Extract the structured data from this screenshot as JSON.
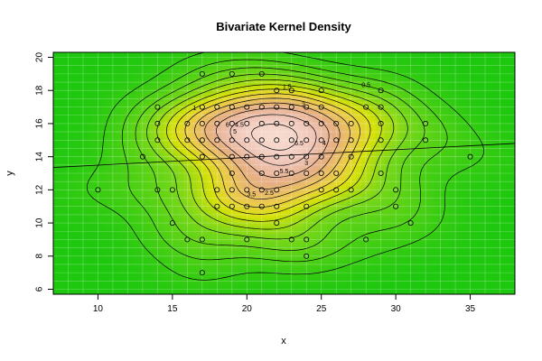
{
  "chart_data": {
    "type": "scatter",
    "title": "Bivariate Kernel Density",
    "xlabel": "x",
    "ylabel": "y",
    "xlim": [
      7,
      38
    ],
    "ylim": [
      5.7,
      20.3
    ],
    "xticks": [
      10,
      15,
      20,
      25,
      30,
      35
    ],
    "yticks": [
      6,
      8,
      10,
      12,
      14,
      16,
      18,
      20
    ],
    "grid": true,
    "regression_line": {
      "x": [
        7,
        38
      ],
      "y": [
        13.35,
        14.8
      ]
    },
    "points": [
      [
        10,
        12
      ],
      [
        13,
        14
      ],
      [
        14,
        12
      ],
      [
        14,
        15
      ],
      [
        14,
        16
      ],
      [
        14,
        17
      ],
      [
        15,
        10
      ],
      [
        15,
        12
      ],
      [
        16,
        9
      ],
      [
        16,
        15
      ],
      [
        16,
        16
      ],
      [
        17,
        7
      ],
      [
        17,
        9
      ],
      [
        17,
        14
      ],
      [
        17,
        15
      ],
      [
        17,
        16
      ],
      [
        17,
        17
      ],
      [
        17,
        19
      ],
      [
        18,
        11
      ],
      [
        18,
        12
      ],
      [
        18,
        15
      ],
      [
        18,
        16
      ],
      [
        18,
        17
      ],
      [
        19,
        11
      ],
      [
        19,
        12
      ],
      [
        19,
        13
      ],
      [
        19,
        14
      ],
      [
        19,
        15
      ],
      [
        19,
        16
      ],
      [
        19,
        17
      ],
      [
        19,
        19
      ],
      [
        20,
        9
      ],
      [
        20,
        11
      ],
      [
        20,
        12
      ],
      [
        20,
        14
      ],
      [
        20,
        15
      ],
      [
        20,
        16
      ],
      [
        20,
        17
      ],
      [
        21,
        11
      ],
      [
        21,
        12
      ],
      [
        21,
        13
      ],
      [
        21,
        14
      ],
      [
        21,
        15
      ],
      [
        21,
        16
      ],
      [
        21,
        17
      ],
      [
        21,
        19
      ],
      [
        22,
        10
      ],
      [
        22,
        11
      ],
      [
        22,
        12
      ],
      [
        22,
        13
      ],
      [
        22,
        14
      ],
      [
        22,
        15
      ],
      [
        22,
        16
      ],
      [
        22,
        17
      ],
      [
        22,
        18
      ],
      [
        23,
        9
      ],
      [
        23,
        13
      ],
      [
        23,
        14
      ],
      [
        23,
        15
      ],
      [
        23,
        16
      ],
      [
        23,
        17
      ],
      [
        23,
        18
      ],
      [
        24,
        8
      ],
      [
        24,
        9
      ],
      [
        24,
        11
      ],
      [
        24,
        13
      ],
      [
        24,
        14
      ],
      [
        24,
        15
      ],
      [
        24,
        16
      ],
      [
        24,
        17
      ],
      [
        25,
        12
      ],
      [
        25,
        13
      ],
      [
        25,
        14
      ],
      [
        25,
        15
      ],
      [
        25,
        16
      ],
      [
        25,
        17
      ],
      [
        25,
        18
      ],
      [
        26,
        12
      ],
      [
        26,
        13
      ],
      [
        26,
        15
      ],
      [
        26,
        16
      ],
      [
        27,
        12
      ],
      [
        27,
        14
      ],
      [
        27,
        15
      ],
      [
        27,
        16
      ],
      [
        28,
        9
      ],
      [
        28,
        17
      ],
      [
        29,
        13
      ],
      [
        29,
        15
      ],
      [
        29,
        16
      ],
      [
        29,
        17
      ],
      [
        29,
        18
      ],
      [
        30,
        11
      ],
      [
        30,
        12
      ],
      [
        31,
        10
      ],
      [
        32,
        15
      ],
      [
        32,
        16
      ],
      [
        35,
        14
      ]
    ],
    "contour_labels": [
      {
        "text": "0.5",
        "x": 28.0,
        "y": 18.2
      },
      {
        "text": "1",
        "x": 16.5,
        "y": 16.8
      },
      {
        "text": "1.5",
        "x": 22.7,
        "y": 18.1
      },
      {
        "text": "2",
        "x": 23.8,
        "y": 17.0
      },
      {
        "text": "2.5",
        "x": 21.5,
        "y": 11.7
      },
      {
        "text": "3",
        "x": 24.0,
        "y": 13.5
      },
      {
        "text": "3.5",
        "x": 20.3,
        "y": 11.6
      },
      {
        "text": "4",
        "x": 25.2,
        "y": 14.7
      },
      {
        "text": "4.5",
        "x": 19.5,
        "y": 15.8
      },
      {
        "text": "5",
        "x": 19.2,
        "y": 15.4
      },
      {
        "text": "5.5",
        "x": 22.5,
        "y": 13.0
      },
      {
        "text": "6",
        "x": 18.7,
        "y": 15.8
      },
      {
        "text": "6.5",
        "x": 23.5,
        "y": 14.7
      }
    ]
  }
}
